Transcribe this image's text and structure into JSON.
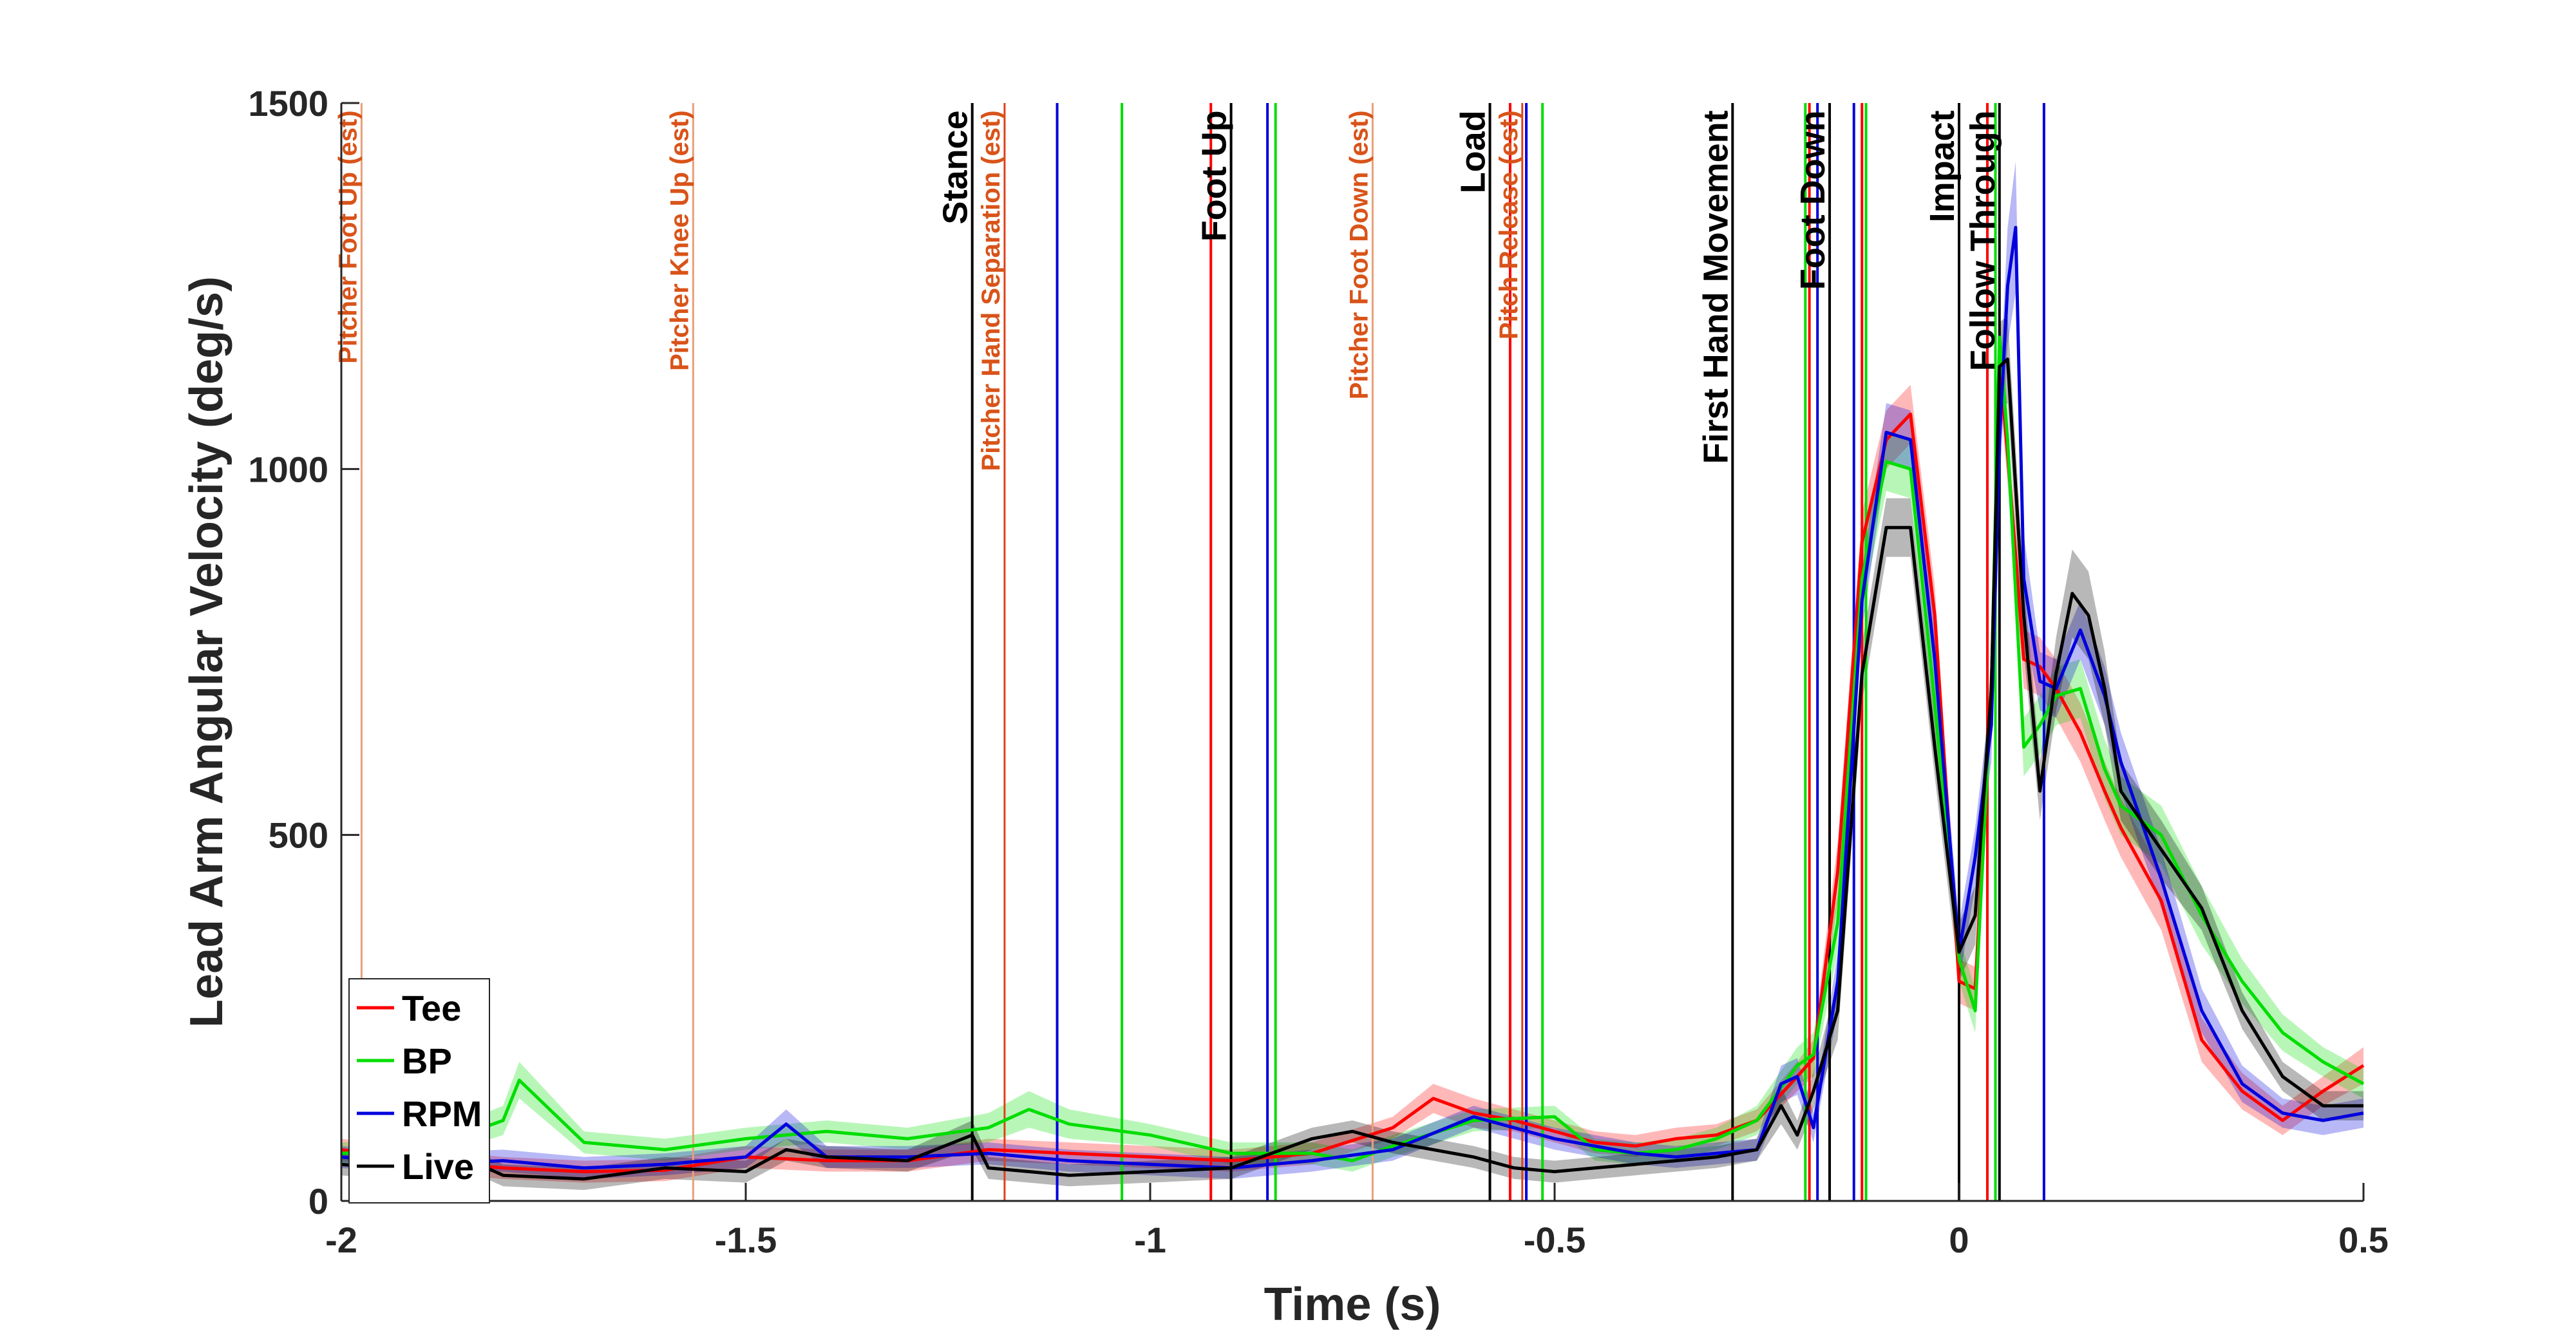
{
  "chart_data": {
    "type": "line",
    "xlabel": "Time (s)",
    "ylabel": "Lead Arm Angular Velocity (deg/s)",
    "xlim": [
      -2,
      0.5
    ],
    "ylim": [
      0,
      1500
    ],
    "xticks": [
      -2,
      -1.5,
      -1,
      -0.5,
      0,
      0.5
    ],
    "xtick_labels": [
      "-2",
      "-1.5",
      "-1",
      "-0.5",
      "0",
      "0.5"
    ],
    "yticks": [
      0,
      500,
      1000,
      1500
    ],
    "ytick_labels": [
      "0",
      "500",
      "1000",
      "1500"
    ],
    "grid": false,
    "legend_position": "bottom-left",
    "series": [
      {
        "name": "Tee",
        "color": "#FF0000",
        "x": [
          -2.0,
          -1.9,
          -1.8,
          -1.7,
          -1.6,
          -1.5,
          -1.4,
          -1.3,
          -1.2,
          -1.1,
          -1.0,
          -0.9,
          -0.8,
          -0.7,
          -0.65,
          -0.6,
          -0.55,
          -0.5,
          -0.45,
          -0.4,
          -0.35,
          -0.3,
          -0.25,
          -0.2,
          -0.18,
          -0.15,
          -0.12,
          -0.09,
          -0.06,
          -0.03,
          0.0,
          0.02,
          0.04,
          0.05,
          0.06,
          0.08,
          0.1,
          0.12,
          0.15,
          0.18,
          0.2,
          0.25,
          0.3,
          0.35,
          0.4,
          0.45,
          0.5
        ],
        "y": [
          70,
          55,
          45,
          40,
          42,
          60,
          55,
          55,
          70,
          65,
          60,
          55,
          65,
          100,
          140,
          120,
          110,
          95,
          80,
          75,
          85,
          90,
          110,
          170,
          195,
          450,
          900,
          1040,
          1075,
          800,
          300,
          290,
          700,
          1150,
          1020,
          740,
          730,
          700,
          640,
          560,
          510,
          410,
          220,
          150,
          110,
          150,
          185
        ],
        "band": [
          15,
          15,
          15,
          15,
          15,
          15,
          15,
          15,
          15,
          15,
          15,
          15,
          15,
          15,
          20,
          20,
          15,
          15,
          15,
          15,
          15,
          15,
          15,
          20,
          25,
          40,
          40,
          40,
          40,
          40,
          30,
          30,
          40,
          40,
          40,
          40,
          40,
          40,
          40,
          40,
          40,
          40,
          30,
          25,
          20,
          20,
          25
        ]
      },
      {
        "name": "BP",
        "color": "#00DD00",
        "x": [
          -2.0,
          -1.9,
          -1.8,
          -1.78,
          -1.7,
          -1.6,
          -1.5,
          -1.4,
          -1.3,
          -1.2,
          -1.15,
          -1.1,
          -1.0,
          -0.9,
          -0.8,
          -0.75,
          -0.7,
          -0.6,
          -0.5,
          -0.45,
          -0.4,
          -0.35,
          -0.3,
          -0.25,
          -0.2,
          -0.18,
          -0.15,
          -0.12,
          -0.09,
          -0.06,
          -0.03,
          0.0,
          0.02,
          0.04,
          0.05,
          0.06,
          0.08,
          0.1,
          0.12,
          0.15,
          0.18,
          0.2,
          0.25,
          0.3,
          0.35,
          0.4,
          0.45,
          0.5
        ],
        "y": [
          65,
          70,
          110,
          165,
          80,
          70,
          85,
          95,
          85,
          100,
          125,
          105,
          90,
          65,
          65,
          55,
          75,
          110,
          115,
          70,
          65,
          70,
          85,
          110,
          185,
          200,
          380,
          850,
          1010,
          1000,
          680,
          330,
          260,
          700,
          1180,
          1040,
          620,
          650,
          690,
          700,
          590,
          540,
          500,
          390,
          300,
          230,
          190,
          160
        ],
        "band": [
          15,
          15,
          20,
          25,
          15,
          15,
          15,
          15,
          15,
          20,
          25,
          20,
          15,
          15,
          15,
          15,
          15,
          15,
          15,
          15,
          15,
          15,
          15,
          20,
          25,
          30,
          40,
          40,
          40,
          40,
          40,
          30,
          30,
          40,
          40,
          40,
          40,
          40,
          40,
          40,
          40,
          40,
          40,
          40,
          30,
          25,
          20,
          20
        ]
      },
      {
        "name": "RPM",
        "color": "#0000DD",
        "x": [
          -2.0,
          -1.9,
          -1.8,
          -1.7,
          -1.6,
          -1.5,
          -1.45,
          -1.4,
          -1.3,
          -1.2,
          -1.1,
          -1.0,
          -0.9,
          -0.8,
          -0.7,
          -0.6,
          -0.5,
          -0.45,
          -0.4,
          -0.35,
          -0.3,
          -0.25,
          -0.22,
          -0.2,
          -0.18,
          -0.15,
          -0.12,
          -0.09,
          -0.06,
          -0.03,
          0.0,
          0.02,
          0.04,
          0.05,
          0.06,
          0.07,
          0.08,
          0.1,
          0.12,
          0.15,
          0.18,
          0.2,
          0.25,
          0.3,
          0.35,
          0.4,
          0.45,
          0.5
        ],
        "y": [
          60,
          50,
          55,
          45,
          50,
          60,
          105,
          60,
          60,
          65,
          55,
          50,
          45,
          55,
          70,
          115,
          85,
          75,
          65,
          60,
          65,
          70,
          160,
          170,
          100,
          300,
          820,
          1050,
          1040,
          740,
          340,
          470,
          650,
          1040,
          1250,
          1330,
          850,
          710,
          700,
          780,
          690,
          600,
          440,
          260,
          160,
          120,
          110,
          120
        ],
        "band": [
          15,
          15,
          15,
          15,
          15,
          15,
          20,
          15,
          15,
          15,
          15,
          15,
          15,
          15,
          15,
          15,
          15,
          15,
          15,
          15,
          15,
          15,
          25,
          25,
          20,
          40,
          40,
          40,
          40,
          40,
          40,
          40,
          50,
          60,
          80,
          90,
          60,
          40,
          40,
          40,
          40,
          40,
          40,
          30,
          25,
          20,
          20,
          20
        ]
      },
      {
        "name": "Live",
        "color": "#000000",
        "x": [
          -2.0,
          -1.9,
          -1.85,
          -1.8,
          -1.7,
          -1.6,
          -1.5,
          -1.45,
          -1.4,
          -1.3,
          -1.22,
          -1.2,
          -1.1,
          -1.0,
          -0.9,
          -0.8,
          -0.75,
          -0.7,
          -0.6,
          -0.55,
          -0.5,
          -0.45,
          -0.4,
          -0.35,
          -0.3,
          -0.25,
          -0.22,
          -0.2,
          -0.18,
          -0.15,
          -0.12,
          -0.09,
          -0.06,
          -0.03,
          0.0,
          0.02,
          0.04,
          0.05,
          0.06,
          0.08,
          0.1,
          0.12,
          0.14,
          0.16,
          0.18,
          0.2,
          0.25,
          0.3,
          0.35,
          0.4,
          0.45,
          0.5
        ],
        "y": [
          50,
          40,
          60,
          35,
          30,
          45,
          40,
          70,
          60,
          55,
          90,
          45,
          35,
          40,
          45,
          85,
          95,
          80,
          60,
          45,
          40,
          45,
          50,
          55,
          60,
          70,
          130,
          90,
          150,
          260,
          720,
          920,
          920,
          620,
          340,
          390,
          700,
          1140,
          1150,
          800,
          560,
          720,
          830,
          800,
          700,
          560,
          480,
          400,
          260,
          170,
          130,
          130
        ],
        "band": [
          15,
          15,
          15,
          15,
          15,
          15,
          15,
          15,
          15,
          15,
          20,
          15,
          15,
          15,
          15,
          15,
          15,
          15,
          15,
          15,
          15,
          15,
          15,
          15,
          15,
          15,
          25,
          20,
          25,
          40,
          40,
          40,
          40,
          40,
          40,
          40,
          50,
          60,
          60,
          50,
          40,
          50,
          60,
          60,
          50,
          40,
          40,
          30,
          25,
          20,
          20,
          20
        ]
      }
    ],
    "event_lines": [
      {
        "x": -1.975,
        "label": "Pitcher Foot Up (est)",
        "kind": "pitcher",
        "color": "#E8A07A",
        "label_top": 1490
      },
      {
        "x": -1.565,
        "label": "Pitcher Knee Up (est)",
        "kind": "pitcher",
        "color": "#E8A07A",
        "label_top": 1490
      },
      {
        "x": -1.22,
        "label": "Stance",
        "kind": "hitter",
        "color": "#000000",
        "label_top": 1490
      },
      {
        "x": -1.18,
        "label": "Pitcher Hand Separation (est)",
        "kind": "pitcher",
        "color": "#E0401A",
        "label_top": 1490
      },
      {
        "x": -1.115,
        "label": "",
        "kind": "plain",
        "color": "#0000DD"
      },
      {
        "x": -1.035,
        "label": "",
        "kind": "plain",
        "color": "#00DD00"
      },
      {
        "x": -0.925,
        "label": "",
        "kind": "plain",
        "color": "#FF0000"
      },
      {
        "x": -0.9,
        "label": "Foot Up",
        "kind": "hitter",
        "color": "#000000",
        "label_top": 1490
      },
      {
        "x": -0.855,
        "label": "",
        "kind": "plain",
        "color": "#0000DD"
      },
      {
        "x": -0.845,
        "label": "",
        "kind": "plain",
        "color": "#00DD00"
      },
      {
        "x": -0.725,
        "label": "Pitcher Foot Down (est)",
        "kind": "pitcher",
        "color": "#E8A07A",
        "label_top": 1490
      },
      {
        "x": -0.58,
        "label": "Load",
        "kind": "hitter",
        "color": "#000000",
        "label_top": 1490
      },
      {
        "x": -0.555,
        "label": "",
        "kind": "plain",
        "color": "#FF0000"
      },
      {
        "x": -0.54,
        "label": "Pitch Release (est)",
        "kind": "pitcher",
        "color": "#E0401A",
        "label_top": 1490
      },
      {
        "x": -0.535,
        "label": "",
        "kind": "plain",
        "color": "#0000DD"
      },
      {
        "x": -0.515,
        "label": "",
        "kind": "plain",
        "color": "#00DD00"
      },
      {
        "x": -0.28,
        "label": "First Hand Movement",
        "kind": "hitter",
        "color": "#000000",
        "label_top": 1490
      },
      {
        "x": -0.19,
        "label": "",
        "kind": "plain",
        "color": "#00DD00"
      },
      {
        "x": -0.185,
        "label": "",
        "kind": "plain",
        "color": "#FF0000"
      },
      {
        "x": -0.175,
        "label": "",
        "kind": "plain",
        "color": "#0000DD"
      },
      {
        "x": -0.16,
        "label": "Foot Down",
        "kind": "hitter",
        "color": "#000000",
        "label_top": 1490
      },
      {
        "x": -0.13,
        "label": "",
        "kind": "plain",
        "color": "#0000DD"
      },
      {
        "x": -0.12,
        "label": "",
        "kind": "plain",
        "color": "#FF0000"
      },
      {
        "x": -0.115,
        "label": "",
        "kind": "plain",
        "color": "#00DD00"
      },
      {
        "x": 0.0,
        "label": "Impact",
        "kind": "hitter",
        "color": "#000000",
        "label_top": 1490
      },
      {
        "x": 0.035,
        "label": "",
        "kind": "plain",
        "color": "#FF0000"
      },
      {
        "x": 0.045,
        "label": "",
        "kind": "plain",
        "color": "#00DD00"
      },
      {
        "x": 0.05,
        "label": "Follow Through",
        "kind": "hitter",
        "color": "#000000",
        "label_top": 1490
      },
      {
        "x": 0.105,
        "label": "",
        "kind": "plain",
        "color": "#0000DD"
      }
    ]
  }
}
